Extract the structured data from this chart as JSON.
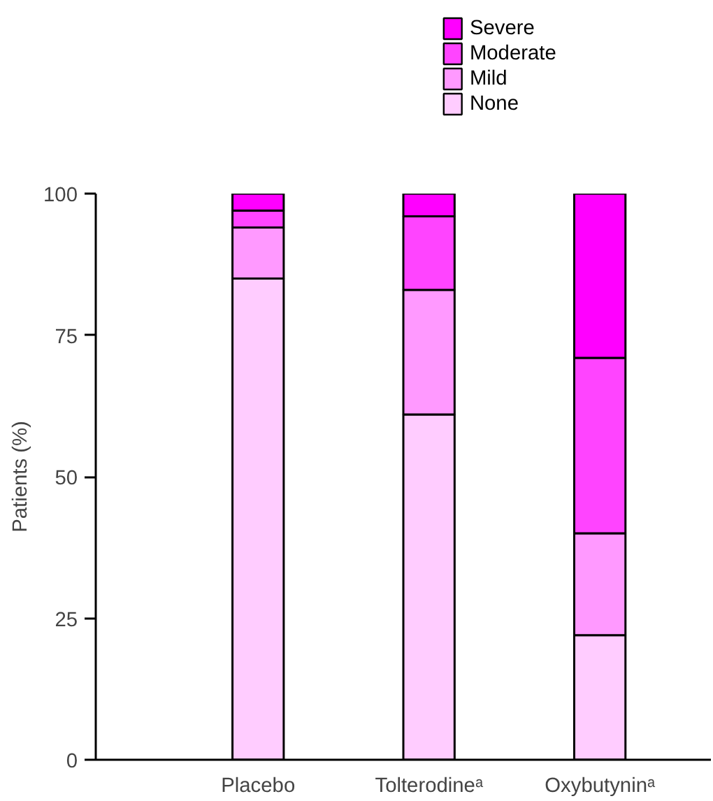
{
  "chart_data": {
    "type": "bar",
    "stacked": true,
    "ylabel": "Patients (%)",
    "categories": [
      "Placebo",
      "Tolterodineᵃ",
      "Oxybutyninᵃ"
    ],
    "series": [
      {
        "name": "None",
        "color": "#ffccff",
        "values": [
          85,
          61,
          22
        ]
      },
      {
        "name": "Mild",
        "color": "#ff99ff",
        "values": [
          9,
          22,
          18
        ]
      },
      {
        "name": "Moderate",
        "color": "#ff44ff",
        "values": [
          3,
          13,
          31
        ]
      },
      {
        "name": "Severe",
        "color": "#ff00ff",
        "values": [
          3,
          4,
          29
        ]
      }
    ],
    "ylim": [
      0,
      100
    ],
    "yticks": [
      0,
      25,
      50,
      75,
      100
    ],
    "grid": false,
    "legend": "top"
  }
}
